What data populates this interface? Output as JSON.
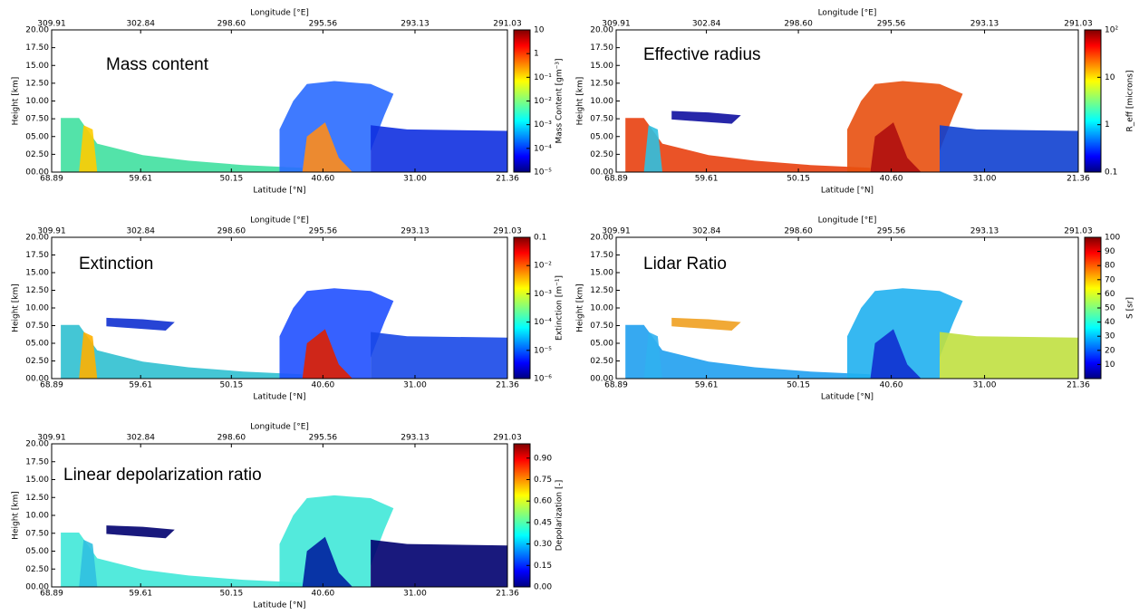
{
  "chart_data": [
    {
      "type": "heatmap",
      "title": "Mass content",
      "xlabel": "Latitude [°N]",
      "x2label": "Longitude [°E]",
      "ylabel": "Height [km]",
      "xlim": [
        68.89,
        21.36
      ],
      "xticks": [
        68.89,
        59.61,
        50.15,
        {
          "value": 40.6,
          "label": "40.60"
        },
        {
          "value": 31,
          "label": "31.00"
        },
        21.36
      ],
      "x2ticks": [
        309.91,
        302.84,
        {
          "value": 298.6,
          "label": "298.60"
        },
        295.56,
        293.13,
        291.03
      ],
      "ylim": [
        0,
        20
      ],
      "yticks": [
        {
          "value": 0,
          "label": "00.00"
        },
        {
          "value": 2.5,
          "label": "02.50"
        },
        {
          "value": 5,
          "label": "05.00"
        },
        {
          "value": 7.5,
          "label": "07.50"
        },
        {
          "value": 10,
          "label": "10.00"
        },
        {
          "value": 12.5,
          "label": "12.50"
        },
        {
          "value": 15,
          "label": "15.00"
        },
        {
          "value": 17.5,
          "label": "17.50"
        },
        {
          "value": 20,
          "label": "20.00"
        }
      ],
      "colorbar": {
        "label": "Mass Content [gm⁻³]",
        "scale": "log",
        "colormap": "jet",
        "lim": [
          1e-05,
          10
        ],
        "ticks": [
          10,
          1,
          {
            "value": 0.1,
            "label": "10⁻¹"
          },
          {
            "value": 0.01,
            "label": "10⁻²"
          },
          {
            "value": 0.001,
            "label": "10⁻³"
          },
          {
            "value": 0.0001,
            "label": "10⁻⁴"
          },
          {
            "value": 1e-05,
            "label": "10⁻⁵"
          }
        ]
      }
    },
    {
      "type": "heatmap",
      "title": "Effective radius",
      "xlabel": "Latitude [°N]",
      "x2label": "Longitude [°E]",
      "ylabel": "Height [km]",
      "xlim": [
        68.89,
        21.36
      ],
      "xticks": [
        68.89,
        59.61,
        50.15,
        {
          "value": 40.6,
          "label": "40.60"
        },
        {
          "value": 31,
          "label": "31.00"
        },
        21.36
      ],
      "x2ticks": [
        309.91,
        302.84,
        {
          "value": 298.6,
          "label": "298.60"
        },
        295.56,
        293.13,
        291.03
      ],
      "ylim": [
        0,
        20
      ],
      "yticks": [
        {
          "value": 0,
          "label": "00.00"
        },
        {
          "value": 2.5,
          "label": "02.50"
        },
        {
          "value": 5,
          "label": "05.00"
        },
        {
          "value": 7.5,
          "label": "07.50"
        },
        {
          "value": 10,
          "label": "10.00"
        },
        {
          "value": 12.5,
          "label": "12.50"
        },
        {
          "value": 15,
          "label": "15.00"
        },
        {
          "value": 17.5,
          "label": "17.50"
        },
        {
          "value": 20,
          "label": "20.00"
        }
      ],
      "colorbar": {
        "label": "R_eff [microns]",
        "scale": "log",
        "colormap": "jet",
        "lim": [
          0.1,
          100
        ],
        "ticks": [
          {
            "value": 100,
            "label": "10²"
          },
          10,
          1,
          0.1
        ]
      }
    },
    {
      "type": "heatmap",
      "title": "Extinction",
      "xlabel": "Latitude [°N]",
      "x2label": "Longitude [°E]",
      "ylabel": "Height [km]",
      "xlim": [
        68.89,
        21.36
      ],
      "xticks": [
        68.89,
        59.61,
        50.15,
        {
          "value": 40.6,
          "label": "40.60"
        },
        {
          "value": 31,
          "label": "31.00"
        },
        21.36
      ],
      "x2ticks": [
        309.91,
        302.84,
        {
          "value": 298.6,
          "label": "298.60"
        },
        295.56,
        293.13,
        291.03
      ],
      "ylim": [
        0,
        20
      ],
      "yticks": [
        {
          "value": 0,
          "label": "00.00"
        },
        {
          "value": 2.5,
          "label": "02.50"
        },
        {
          "value": 5,
          "label": "05.00"
        },
        {
          "value": 7.5,
          "label": "07.50"
        },
        {
          "value": 10,
          "label": "10.00"
        },
        {
          "value": 12.5,
          "label": "12.50"
        },
        {
          "value": 15,
          "label": "15.00"
        },
        {
          "value": 17.5,
          "label": "17.50"
        },
        {
          "value": 20,
          "label": "20.00"
        }
      ],
      "colorbar": {
        "label": "Extinction [m⁻¹]",
        "scale": "log",
        "colormap": "jet",
        "lim": [
          1e-06,
          0.1
        ],
        "ticks": [
          0.1,
          {
            "value": 0.01,
            "label": "10⁻²"
          },
          {
            "value": 0.001,
            "label": "10⁻³"
          },
          {
            "value": 0.0001,
            "label": "10⁻⁴"
          },
          {
            "value": 1e-05,
            "label": "10⁻⁵"
          },
          {
            "value": 1e-06,
            "label": "10⁻⁶"
          }
        ]
      }
    },
    {
      "type": "heatmap",
      "title": "Lidar Ratio",
      "xlabel": "Latitude [°N]",
      "x2label": "Longitude [°E]",
      "ylabel": "Height [km]",
      "xlim": [
        68.89,
        21.36
      ],
      "xticks": [
        68.89,
        59.61,
        50.15,
        {
          "value": 40.6,
          "label": "40.60"
        },
        {
          "value": 31,
          "label": "31.00"
        },
        21.36
      ],
      "x2ticks": [
        309.91,
        302.84,
        {
          "value": 298.6,
          "label": "298.60"
        },
        295.56,
        293.13,
        291.03
      ],
      "ylim": [
        0,
        20
      ],
      "yticks": [
        {
          "value": 0,
          "label": "00.00"
        },
        {
          "value": 2.5,
          "label": "02.50"
        },
        {
          "value": 5,
          "label": "05.00"
        },
        {
          "value": 7.5,
          "label": "07.50"
        },
        {
          "value": 10,
          "label": "10.00"
        },
        {
          "value": 12.5,
          "label": "12.50"
        },
        {
          "value": 15,
          "label": "15.00"
        },
        {
          "value": 17.5,
          "label": "17.50"
        },
        {
          "value": 20,
          "label": "20.00"
        }
      ],
      "colorbar": {
        "label": "S [sr]",
        "scale": "linear",
        "colormap": "jet",
        "lim": [
          0,
          100
        ],
        "ticks": [
          100,
          90,
          80,
          70,
          60,
          50,
          40,
          30,
          20,
          10
        ]
      }
    },
    {
      "type": "heatmap",
      "title": "Linear depolarization ratio",
      "xlabel": "Latitude [°N]",
      "x2label": "Longitude [°E]",
      "ylabel": "Height [km]",
      "xlim": [
        68.89,
        21.36
      ],
      "xticks": [
        68.89,
        59.61,
        50.15,
        {
          "value": 40.6,
          "label": "40.60"
        },
        {
          "value": 31,
          "label": "31.00"
        },
        21.36
      ],
      "x2ticks": [
        309.91,
        302.84,
        {
          "value": 298.6,
          "label": "298.60"
        },
        295.56,
        293.13,
        291.03
      ],
      "ylim": [
        0,
        20
      ],
      "yticks": [
        {
          "value": 0,
          "label": "00.00"
        },
        {
          "value": 2.5,
          "label": "02.50"
        },
        {
          "value": 5,
          "label": "05.00"
        },
        {
          "value": 7.5,
          "label": "07.50"
        },
        {
          "value": 10,
          "label": "10.00"
        },
        {
          "value": 12.5,
          "label": "12.50"
        },
        {
          "value": 15,
          "label": "15.00"
        },
        {
          "value": 17.5,
          "label": "17.50"
        },
        {
          "value": 20,
          "label": "20.00"
        }
      ],
      "colorbar": {
        "label": "Depolarization [-]",
        "scale": "linear",
        "colormap": "jet",
        "lim": [
          0,
          1
        ],
        "ticks": [
          {
            "value": 0.9,
            "label": "0.90"
          },
          0.75,
          {
            "value": 0.6,
            "label": "0.60"
          },
          0.45,
          {
            "value": 0.3,
            "label": "0.30"
          },
          0.15,
          {
            "value": 0,
            "label": "0.00"
          }
        ]
      }
    }
  ]
}
